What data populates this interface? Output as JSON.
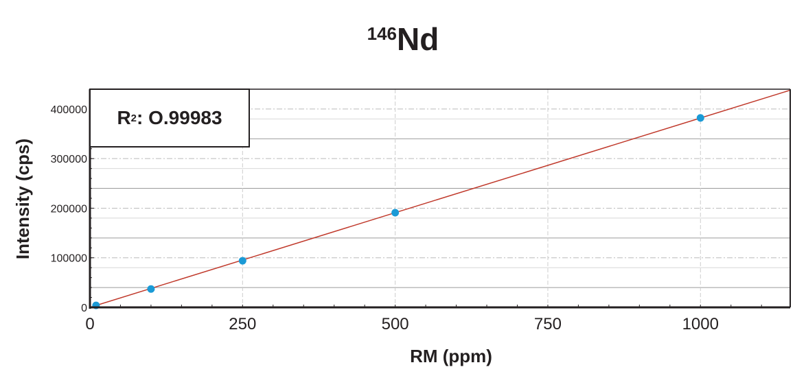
{
  "chart_data": {
    "type": "scatter",
    "title_mass": "146",
    "title_element": "Nd",
    "xlabel": "RM (ppm)",
    "ylabel": "Intensity (cps)",
    "xlim": [
      0,
      1147
    ],
    "ylim": [
      0,
      440000
    ],
    "xticks": [
      0,
      250,
      500,
      750,
      1000
    ],
    "yticks": [
      0,
      100000,
      200000,
      300000,
      400000
    ],
    "grid": true,
    "annotation": {
      "label": "R",
      "sup": "2",
      "value": ": O.99983"
    },
    "series": [
      {
        "type": "points",
        "color": "#1a9ad6",
        "x": [
          10,
          100,
          250,
          500,
          1000
        ],
        "y": [
          4000,
          37000,
          94000,
          191000,
          382000
        ]
      },
      {
        "type": "fit-line",
        "color": "#c0392b",
        "x": [
          0,
          1147
        ],
        "y": [
          0,
          438000
        ]
      }
    ]
  }
}
